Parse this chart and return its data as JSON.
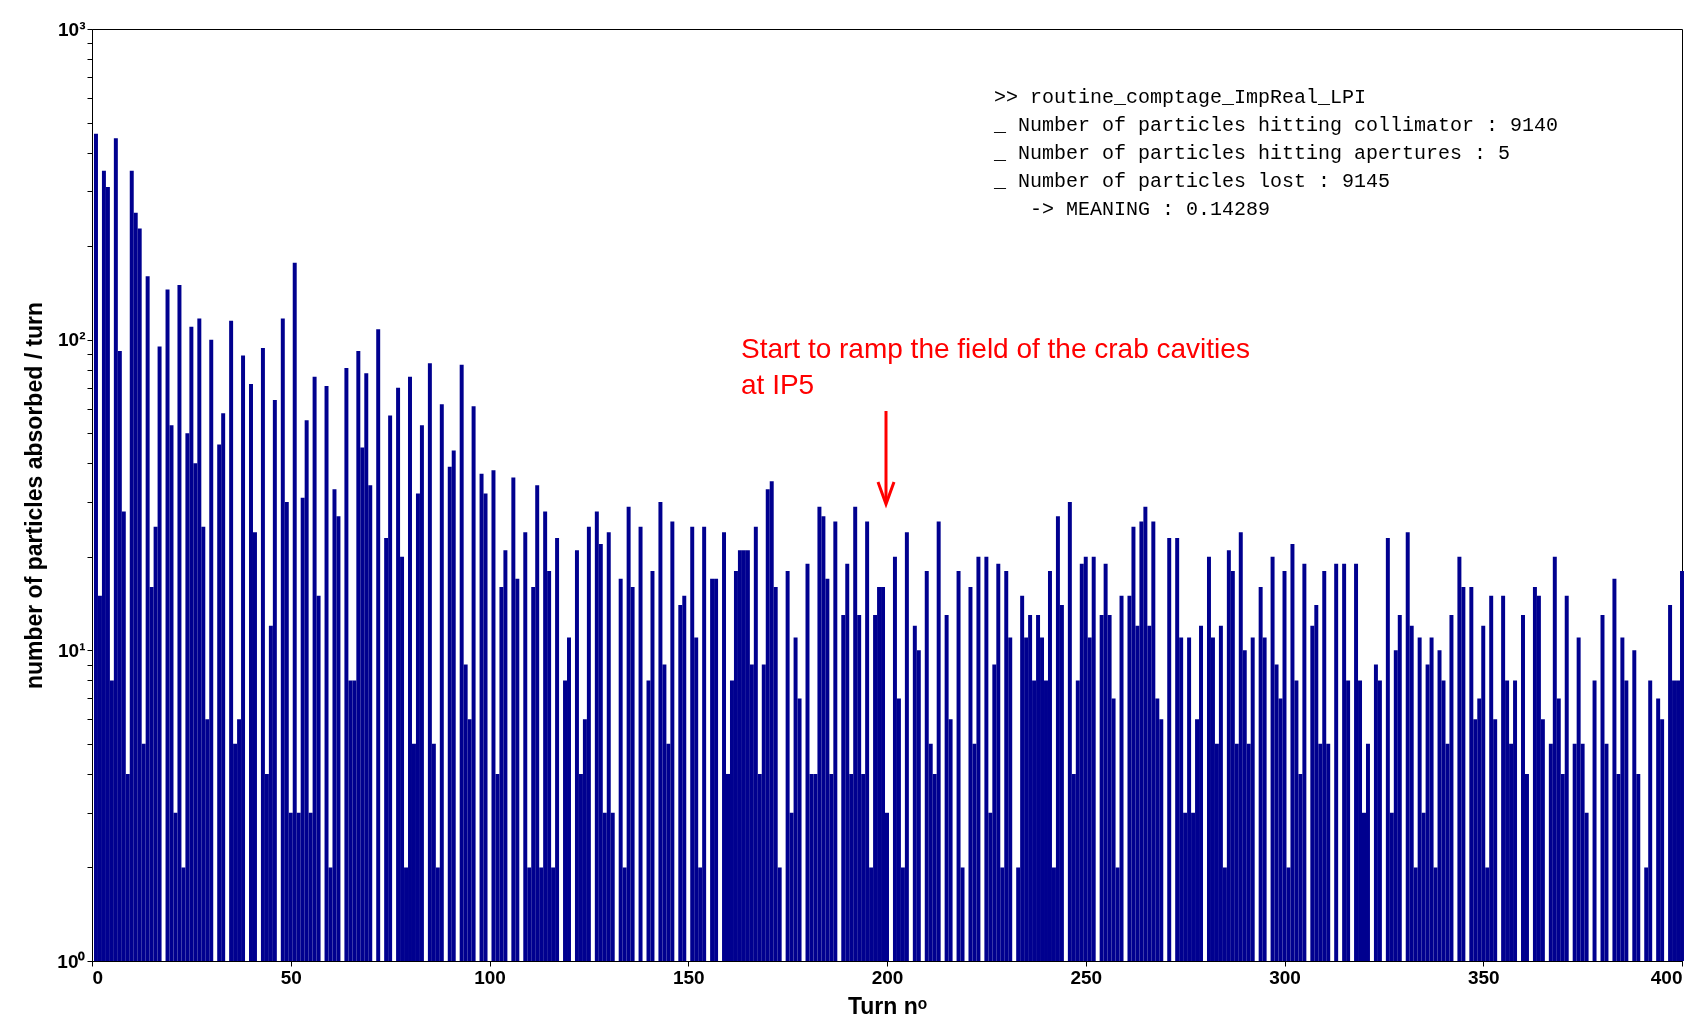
{
  "chart_data": {
    "type": "bar",
    "xlabel": "Turn nᵒ",
    "ylabel": "number of particles absorbed / turn",
    "color": "#00008f",
    "log": true,
    "xlim": [
      0,
      400
    ],
    "xticks": [
      0,
      50,
      100,
      150,
      200,
      250,
      300,
      350,
      400
    ],
    "ylim": [
      1,
      1000
    ],
    "yticks": [
      {
        "value": 1,
        "label": "10⁰"
      },
      {
        "value": 2,
        "label": null
      },
      {
        "value": 3,
        "label": null
      },
      {
        "value": 4,
        "label": null
      },
      {
        "value": 5,
        "label": null
      },
      {
        "value": 6,
        "label": null
      },
      {
        "value": 7,
        "label": null
      },
      {
        "value": 8,
        "label": null
      },
      {
        "value": 9,
        "label": null
      },
      {
        "value": 10,
        "label": "10¹"
      },
      {
        "value": 20,
        "label": null
      },
      {
        "value": 30,
        "label": null
      },
      {
        "value": 40,
        "label": null
      },
      {
        "value": 50,
        "label": null
      },
      {
        "value": 60,
        "label": null
      },
      {
        "value": 70,
        "label": null
      },
      {
        "value": 80,
        "label": null
      },
      {
        "value": 90,
        "label": null
      },
      {
        "value": 100,
        "label": "10²"
      },
      {
        "value": 200,
        "label": null
      },
      {
        "value": 300,
        "label": null
      },
      {
        "value": 400,
        "label": null
      },
      {
        "value": 500,
        "label": null
      },
      {
        "value": 600,
        "label": null
      },
      {
        "value": 700,
        "label": null
      },
      {
        "value": 800,
        "label": null
      },
      {
        "value": 900,
        "label": null
      },
      {
        "value": 1000,
        "label": "10³"
      }
    ],
    "x": [
      1,
      2,
      3,
      4,
      5,
      6,
      7,
      8,
      9,
      10,
      11,
      12,
      13,
      14,
      15,
      16,
      17,
      18,
      19,
      20,
      21,
      22,
      23,
      24,
      25,
      26,
      27,
      28,
      29,
      30,
      31,
      32,
      33,
      34,
      35,
      36,
      37,
      38,
      39,
      40,
      41,
      42,
      43,
      44,
      45,
      46,
      47,
      48,
      49,
      50,
      51,
      52,
      53,
      54,
      55,
      56,
      57,
      58,
      59,
      60,
      61,
      62,
      63,
      64,
      65,
      66,
      67,
      68,
      69,
      70,
      71,
      72,
      73,
      74,
      75,
      76,
      77,
      78,
      79,
      80,
      81,
      82,
      83,
      84,
      85,
      86,
      87,
      88,
      89,
      90,
      91,
      92,
      93,
      94,
      95,
      96,
      97,
      98,
      99,
      100,
      101,
      102,
      103,
      104,
      105,
      106,
      107,
      108,
      109,
      110,
      111,
      112,
      113,
      114,
      115,
      116,
      117,
      118,
      119,
      120,
      121,
      122,
      123,
      124,
      125,
      126,
      127,
      128,
      129,
      130,
      131,
      132,
      133,
      134,
      135,
      136,
      137,
      138,
      139,
      140,
      141,
      142,
      143,
      144,
      145,
      146,
      147,
      148,
      149,
      150,
      151,
      152,
      153,
      154,
      155,
      156,
      157,
      158,
      159,
      160,
      161,
      162,
      163,
      164,
      165,
      166,
      167,
      168,
      169,
      170,
      171,
      172,
      173,
      174,
      175,
      176,
      177,
      178,
      179,
      180,
      181,
      182,
      183,
      184,
      185,
      186,
      187,
      188,
      189,
      190,
      191,
      192,
      193,
      194,
      195,
      196,
      197,
      198,
      199,
      200,
      201,
      202,
      203,
      204,
      205,
      206,
      207,
      208,
      209,
      210,
      211,
      212,
      213,
      214,
      215,
      216,
      217,
      218,
      219,
      220,
      221,
      222,
      223,
      224,
      225,
      226,
      227,
      228,
      229,
      230,
      231,
      232,
      233,
      234,
      235,
      236,
      237,
      238,
      239,
      240,
      241,
      242,
      243,
      244,
      245,
      246,
      247,
      248,
      249,
      250,
      251,
      252,
      253,
      254,
      255,
      256,
      257,
      258,
      259,
      260,
      261,
      262,
      263,
      264,
      265,
      266,
      267,
      268,
      269,
      270,
      271,
      272,
      273,
      274,
      275,
      276,
      277,
      278,
      279,
      280,
      281,
      282,
      283,
      284,
      285,
      286,
      287,
      288,
      289,
      290,
      291,
      292,
      293,
      294,
      295,
      296,
      297,
      298,
      299,
      300,
      301,
      302,
      303,
      304,
      305,
      306,
      307,
      308,
      309,
      310,
      311,
      312,
      313,
      314,
      315,
      316,
      317,
      318,
      319,
      320,
      321,
      322,
      323,
      324,
      325,
      326,
      327,
      328,
      329,
      330,
      331,
      332,
      333,
      334,
      335,
      336,
      337,
      338,
      339,
      340,
      341,
      342,
      343,
      344,
      345,
      346,
      347,
      348,
      349,
      350,
      351,
      352,
      353,
      354,
      355,
      356,
      357,
      358,
      359,
      360,
      361,
      362,
      363,
      364,
      365,
      366,
      367,
      368,
      369,
      370,
      371,
      372,
      373,
      374,
      375,
      376,
      377,
      378,
      379,
      380,
      381,
      382,
      383,
      384,
      385,
      386,
      387,
      388,
      389,
      390,
      391,
      392,
      393,
      394,
      395,
      396,
      397,
      398,
      399,
      400
    ],
    "values": [
      460,
      15,
      350,
      310,
      8,
      445,
      92,
      28,
      4,
      350,
      256,
      228,
      5,
      160,
      16,
      25,
      95,
      null,
      145,
      53,
      3,
      150,
      2,
      50,
      110,
      40,
      117,
      25,
      6,
      100,
      null,
      46,
      58,
      null,
      115,
      5,
      6,
      89,
      null,
      72,
      24,
      null,
      94,
      4,
      12,
      64,
      null,
      117,
      30,
      3,
      177,
      3,
      31,
      55,
      3,
      76,
      15,
      null,
      71,
      2,
      33,
      27,
      null,
      81,
      8,
      8,
      92,
      45,
      78,
      34,
      null,
      108,
      null,
      23,
      57,
      null,
      70,
      20,
      2,
      76,
      5,
      32,
      53,
      null,
      84,
      5,
      2,
      62,
      null,
      39,
      44,
      null,
      83,
      9,
      6,
      61,
      null,
      37,
      32,
      null,
      38,
      4,
      16,
      21,
      null,
      36,
      17,
      null,
      24,
      2,
      16,
      34,
      2,
      28,
      18,
      2,
      23,
      null,
      8,
      11,
      null,
      21,
      4,
      6,
      25,
      null,
      28,
      22,
      3,
      24,
      3,
      null,
      17,
      2,
      29,
      16,
      null,
      25,
      null,
      8,
      18,
      null,
      30,
      9,
      5,
      26,
      null,
      14,
      15,
      null,
      25,
      11,
      2,
      25,
      null,
      17,
      17,
      null,
      24,
      4,
      8,
      18,
      21,
      21,
      21,
      9,
      25,
      4,
      9,
      33,
      35,
      16,
      2,
      null,
      18,
      3,
      11,
      7,
      null,
      19,
      4,
      4,
      29,
      27,
      17,
      4,
      26,
      null,
      13,
      19,
      4,
      29,
      13,
      4,
      26,
      2,
      13,
      16,
      16,
      3,
      null,
      20,
      7,
      2,
      24,
      null,
      12,
      10,
      null,
      18,
      5,
      4,
      26,
      null,
      13,
      6,
      null,
      18,
      2,
      null,
      16,
      5,
      20,
      null,
      20,
      3,
      9,
      19,
      2,
      18,
      11,
      null,
      2,
      15,
      11,
      13,
      8,
      13,
      11,
      8,
      18,
      2,
      27,
      14,
      null,
      30,
      4,
      8,
      19,
      20,
      11,
      20,
      null,
      13,
      19,
      13,
      7,
      2,
      15,
      null,
      15,
      25,
      12,
      26,
      29,
      12,
      26,
      7,
      6,
      null,
      23,
      null,
      23,
      11,
      3,
      11,
      3,
      6,
      12,
      null,
      20,
      11,
      5,
      12,
      2,
      21,
      18,
      5,
      24,
      10,
      5,
      11,
      null,
      16,
      11,
      null,
      20,
      9,
      7,
      18,
      2,
      22,
      8,
      4,
      19,
      null,
      12,
      14,
      5,
      18,
      5,
      null,
      19,
      null,
      19,
      8,
      null,
      19,
      8,
      3,
      5,
      null,
      9,
      8,
      null,
      23,
      3,
      10,
      13,
      null,
      24,
      12,
      2,
      11,
      3,
      9,
      11,
      2,
      10,
      8,
      5,
      13,
      null,
      20,
      16,
      null,
      16,
      6,
      7,
      12,
      2,
      15,
      6,
      null,
      15,
      8,
      5,
      8,
      null,
      13,
      4,
      null,
      16,
      15,
      6,
      null,
      5,
      20,
      7,
      4,
      15,
      null,
      5,
      11,
      5,
      3,
      null,
      8,
      null,
      13,
      5,
      null,
      17,
      4,
      11,
      8,
      null,
      10,
      4,
      null,
      2,
      8,
      null,
      7,
      6,
      null,
      14,
      8,
      8,
      18
    ],
    "annotations": [
      ">> routine_comptage_ImpReal_LPI",
      "_ Number of particles hitting collimator : 9140",
      "_ Number of particles hitting apertures : 5",
      "_ Number of particles lost : 9145",
      "   -> MEANING : 0.14289",
      "Start to ramp the field of the crab cavities at IP5"
    ]
  }
}
